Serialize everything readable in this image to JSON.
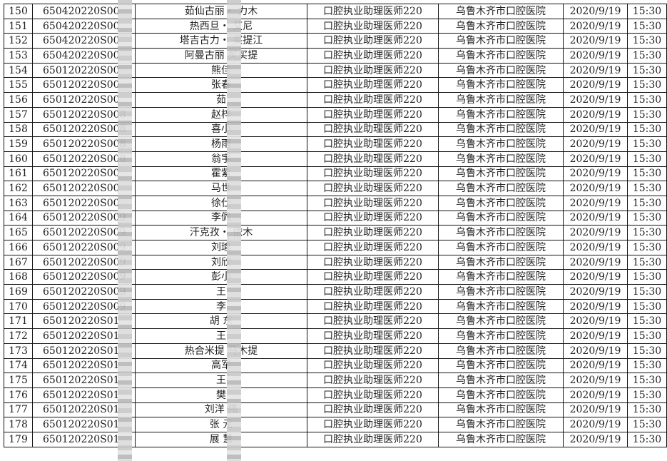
{
  "columns_fixed": {
    "exam": "口腔执业助理医师220",
    "location": "乌鲁木齐市口腔医院",
    "date": "2020/9/19",
    "time": "15:30"
  },
  "rows": [
    {
      "no": "150",
      "id": "650420220S00",
      "name": "茹仙古丽・ 力木"
    },
    {
      "no": "151",
      "id": "650420220S00",
      "name": "热西旦・ 艾尼"
    },
    {
      "no": "152",
      "id": "650420220S00",
      "name": "塔吉古力・ 买提江"
    },
    {
      "no": "153",
      "id": "650420220S00",
      "name": "阿曼古丽  买买提"
    },
    {
      "no": "154",
      "id": "650120220S00",
      "name": "熊佳"
    },
    {
      "no": "155",
      "id": "650120220S00",
      "name": "张春"
    },
    {
      "no": "156",
      "id": "650120220S00",
      "name": "茹"
    },
    {
      "no": "157",
      "id": "650120220S008",
      "name": "赵梓"
    },
    {
      "no": "158",
      "id": "650120220S008",
      "name": "喜小"
    },
    {
      "no": "159",
      "id": "650120220S008",
      "name": "杨雨"
    },
    {
      "no": "160",
      "id": "650120220S008",
      "name": "翁宇"
    },
    {
      "no": "161",
      "id": "650120220S00",
      "name": "霍紫"
    },
    {
      "no": "162",
      "id": "650120220S00",
      "name": "马世"
    },
    {
      "no": "163",
      "id": "650120220S00",
      "name": "徐仕"
    },
    {
      "no": "164",
      "id": "650120220S009",
      "name": "李佩"
    },
    {
      "no": "165",
      "id": "650120220S009",
      "name": "汗克孜・ 依木"
    },
    {
      "no": "166",
      "id": "650120220S009",
      "name": "刘瑜"
    },
    {
      "no": "167",
      "id": "650120220S009",
      "name": "刘欣"
    },
    {
      "no": "168",
      "id": "650120220S009",
      "name": "彭小"
    },
    {
      "no": "169",
      "id": "650120220S009",
      "name": "王"
    },
    {
      "no": "170",
      "id": "650120220S009",
      "name": "李"
    },
    {
      "no": "171",
      "id": "650120220S01",
      "name": "胡  东"
    },
    {
      "no": "172",
      "id": "650120220S01",
      "name": "王"
    },
    {
      "no": "173",
      "id": "650120220S01",
      "name": "热合米提  马木提"
    },
    {
      "no": "174",
      "id": "650120220S01",
      "name": "高军"
    },
    {
      "no": "175",
      "id": "650120220S01",
      "name": "王"
    },
    {
      "no": "176",
      "id": "650120220S01",
      "name": "樊"
    },
    {
      "no": "177",
      "id": "650120220S01",
      "name": "刘洋  伟"
    },
    {
      "no": "178",
      "id": "650120220S01",
      "name": "张  元"
    },
    {
      "no": "179",
      "id": "650120220S01",
      "name": "展  慧"
    }
  ]
}
